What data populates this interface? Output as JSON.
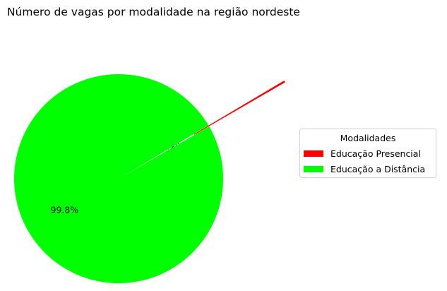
{
  "chart_data": {
    "type": "pie",
    "title": "Número de vagas por modalidade na região nordeste",
    "categories": [
      "Educação Presencial",
      "Educação a Distância"
    ],
    "values": [
      0.2,
      99.8
    ],
    "value_unit": "%",
    "slice_labels": [
      "0.2%",
      "99.8%"
    ],
    "colors": [
      "#ff0000",
      "#00ff00"
    ],
    "exploded": [
      true,
      false
    ],
    "legend": {
      "title": "Modalidades",
      "placement": "right",
      "entries": [
        "Educação Presencial",
        "Educação a Distância"
      ]
    }
  }
}
